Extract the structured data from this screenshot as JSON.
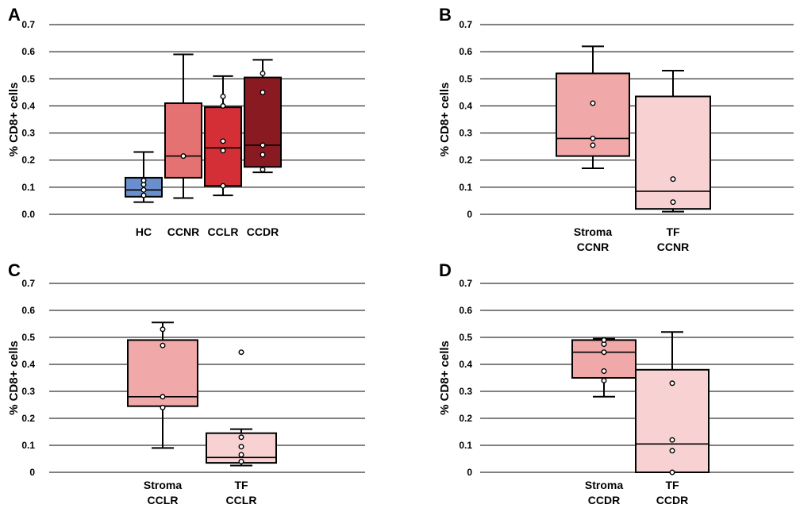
{
  "chart_data": [
    {
      "panel": "A",
      "type": "box",
      "ylabel": "% CD8+ cells",
      "ylim": [
        0,
        0.7
      ],
      "yticks": [
        "0.0",
        "0.1",
        "0.2",
        "0.3",
        "0.4",
        "0.5",
        "0.6",
        "0.7"
      ],
      "grid": true,
      "boxes": [
        {
          "label": [
            "HC"
          ],
          "color": "#6b8fcc",
          "min": 0.045,
          "q1": 0.065,
          "median": 0.09,
          "q3": 0.135,
          "max": 0.23,
          "points": [
            0.07,
            0.09,
            0.11,
            0.125
          ]
        },
        {
          "label": [
            "CCNR"
          ],
          "color": "#e47272",
          "min": 0.06,
          "q1": 0.135,
          "median": 0.215,
          "q3": 0.41,
          "max": 0.59,
          "points": [
            0.215
          ]
        },
        {
          "label": [
            "CCLR"
          ],
          "color": "#d42f36",
          "min": 0.07,
          "q1": 0.105,
          "median": 0.245,
          "q3": 0.395,
          "max": 0.51,
          "points": [
            0.105,
            0.235,
            0.27,
            0.4,
            0.435
          ]
        },
        {
          "label": [
            "CCDR"
          ],
          "color": "#8a1a22",
          "min": 0.155,
          "q1": 0.175,
          "median": 0.255,
          "q3": 0.505,
          "max": 0.57,
          "points": [
            0.165,
            0.22,
            0.255,
            0.45,
            0.52
          ]
        }
      ]
    },
    {
      "panel": "B",
      "type": "box",
      "ylabel": "% CD8+ cells",
      "ylim": [
        0,
        0.7
      ],
      "yticks": [
        "0",
        "0.1",
        "0.2",
        "0.3",
        "0.4",
        "0.5",
        "0.6",
        "0.7"
      ],
      "grid": true,
      "boxes": [
        {
          "label": [
            "Stroma",
            "CCNR"
          ],
          "color": "#f0a8a8",
          "min": 0.17,
          "q1": 0.215,
          "median": 0.28,
          "q3": 0.52,
          "max": 0.62,
          "points": [
            0.255,
            0.28,
            0.41
          ]
        },
        {
          "label": [
            "TF",
            "CCNR"
          ],
          "color": "#f8d2d2",
          "min": 0.01,
          "q1": 0.02,
          "median": 0.085,
          "q3": 0.435,
          "max": 0.53,
          "points": [
            0.045,
            0.13
          ]
        }
      ]
    },
    {
      "panel": "C",
      "type": "box",
      "ylabel": "% CD8+ cells",
      "ylim": [
        0,
        0.7
      ],
      "yticks": [
        "0",
        "0.1",
        "0.2",
        "0.3",
        "0.4",
        "0.5",
        "0.6",
        "0.7"
      ],
      "grid": true,
      "boxes": [
        {
          "label": [
            "Stroma",
            "CCLR"
          ],
          "color": "#f0a8a8",
          "min": 0.09,
          "q1": 0.245,
          "median": 0.28,
          "q3": 0.49,
          "max": 0.555,
          "points": [
            0.24,
            0.28,
            0.47,
            0.53
          ]
        },
        {
          "label": [
            "TF",
            "CCLR"
          ],
          "color": "#f8d2d2",
          "min": 0.025,
          "q1": 0.035,
          "median": 0.055,
          "q3": 0.145,
          "max": 0.16,
          "points": [
            0.04,
            0.065,
            0.095,
            0.13,
            0.445
          ]
        }
      ]
    },
    {
      "panel": "D",
      "type": "box",
      "ylabel": "% CD8+ cells",
      "ylim": [
        0,
        0.7
      ],
      "yticks": [
        "0",
        "0.1",
        "0.2",
        "0.3",
        "0.4",
        "0.5",
        "0.6",
        "0.7"
      ],
      "grid": true,
      "boxes": [
        {
          "label": [
            "Stroma",
            "CCDR"
          ],
          "color": "#f0a8a8",
          "min": 0.28,
          "q1": 0.35,
          "median": 0.445,
          "q3": 0.49,
          "max": 0.495,
          "points": [
            0.34,
            0.375,
            0.445,
            0.475,
            0.49
          ]
        },
        {
          "label": [
            "TF",
            "CCDR"
          ],
          "color": "#f8d2d2",
          "min": 0.0,
          "q1": 0.0,
          "median": 0.105,
          "q3": 0.38,
          "max": 0.52,
          "points": [
            0.0,
            0.08,
            0.12,
            0.33
          ]
        }
      ]
    }
  ]
}
